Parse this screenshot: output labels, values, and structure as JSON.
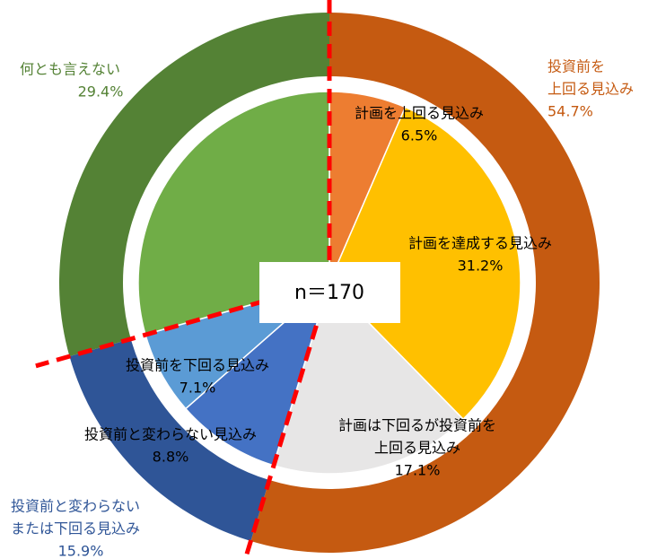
{
  "chart_data": {
    "type": "nested_pie",
    "n_label": "n＝170",
    "inner": {
      "categories": [
        [
          "計画を上回る見込み"
        ],
        [
          "計画を達成する見込み"
        ],
        [
          "計画は下回るが投資前を",
          "上回る見込み"
        ],
        [
          "投資前と変わらない見込み"
        ],
        [
          "投資前を下回る見込み"
        ],
        null
      ],
      "values": [
        6.5,
        31.2,
        17.1,
        8.8,
        7.1,
        29.4
      ],
      "value_labels": [
        "6.5%",
        "31.2%",
        "17.1%",
        "8.8%",
        "7.1%",
        null
      ],
      "colors": [
        "#ed7d31",
        "#ffc000",
        "#e7e6e6",
        "#4472c4",
        "#5b9bd5",
        "#70ad47"
      ]
    },
    "outer": {
      "categories": [
        [
          "投資前を",
          "上回る見込み"
        ],
        [
          "投資前と変わらない",
          "または下回る見込み"
        ],
        [
          "何とも言えない"
        ]
      ],
      "values": [
        54.7,
        15.9,
        29.4
      ],
      "value_labels": [
        "54.7%",
        "15.9%",
        "29.4%"
      ],
      "colors": [
        "#c55a11",
        "#2f5597",
        "#548235"
      ]
    }
  }
}
